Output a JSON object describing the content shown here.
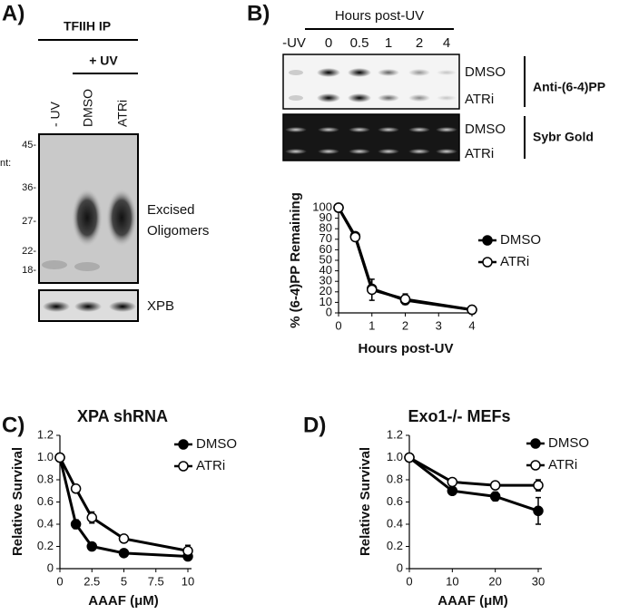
{
  "panel_a": {
    "label": "A)",
    "ip": "TFIIH IP",
    "uv": "+ UV",
    "lanes": [
      "- UV",
      "DMSO",
      "ATRi"
    ],
    "nt_label": "nt:",
    "markers": [
      "45-",
      "36-",
      "27-",
      "22-",
      "18-"
    ],
    "band_label": [
      "Excised",
      "Oligomers"
    ],
    "loading": "XPB"
  },
  "panel_b": {
    "label": "B)",
    "header": "Hours post-UV",
    "lanes": [
      "-UV",
      "0",
      "0.5",
      "1",
      "2",
      "4"
    ],
    "rows": [
      "DMSO",
      "ATRi"
    ],
    "blot1": "Anti-(6-4)PP",
    "blot2": "Sybr Gold"
  },
  "chart_data": [
    {
      "type": "line",
      "xlabel": "Hours post-UV",
      "ylabel": "% (6-4)PP Remaining",
      "x": [
        0,
        0.5,
        1,
        2,
        4
      ],
      "xlim": [
        0,
        4
      ],
      "xticks": [
        0,
        1,
        2,
        3,
        4
      ],
      "ylim": [
        0,
        100
      ],
      "yticks": [
        0,
        10,
        20,
        30,
        40,
        50,
        60,
        70,
        80,
        90,
        100
      ],
      "series": [
        {
          "name": "DMSO",
          "color": "#000000",
          "filled": true,
          "values": [
            100,
            73,
            23,
            12,
            3
          ],
          "errors": [
            null,
            null,
            null,
            null,
            null
          ]
        },
        {
          "name": "ATRi",
          "color": "#000000",
          "filled": false,
          "values": [
            100,
            72,
            22,
            13,
            3
          ],
          "errors": [
            null,
            2,
            10,
            5,
            1
          ]
        }
      ]
    },
    {
      "type": "line",
      "panel_label": "C)",
      "title": "XPA shRNA",
      "xlabel": "AAAF (μM)",
      "ylabel": "Relative Survival",
      "x": [
        0,
        1.25,
        2.5,
        5,
        10
      ],
      "xlim": [
        0,
        10
      ],
      "xticks": [
        0,
        2.5,
        5,
        7.5,
        10
      ],
      "ylim": [
        0,
        1.2
      ],
      "yticks": [
        0,
        0.2,
        0.4,
        0.6,
        0.8,
        {
          "value": 1,
          "label": "1.0"
        },
        1.2
      ],
      "series": [
        {
          "name": "DMSO",
          "color": "#000000",
          "filled": true,
          "values": [
            1,
            0.4,
            0.2,
            0.14,
            0.11
          ],
          "errors": [
            null,
            0.04,
            null,
            null,
            null
          ]
        },
        {
          "name": "ATRi",
          "color": "#000000",
          "filled": false,
          "values": [
            1,
            0.72,
            0.46,
            0.27,
            0.16
          ],
          "errors": [
            null,
            0.02,
            0.05,
            null,
            0.05
          ]
        }
      ]
    },
    {
      "type": "line",
      "panel_label": "D)",
      "title": "Exo1-/- MEFs",
      "xlabel": "AAAF (μM)",
      "ylabel": "Relative Survival",
      "x": [
        0,
        10,
        20,
        30
      ],
      "xlim": [
        0,
        30
      ],
      "xticks": [
        0,
        10,
        20,
        30
      ],
      "ylim": [
        0,
        1.2
      ],
      "yticks": [
        0,
        0.2,
        0.4,
        0.6,
        0.8,
        {
          "value": 1,
          "label": "1.0"
        },
        1.2
      ],
      "series": [
        {
          "name": "DMSO",
          "color": "#000000",
          "filled": true,
          "values": [
            1,
            0.7,
            0.65,
            0.52
          ],
          "errors": [
            null,
            null,
            0.04,
            0.12
          ]
        },
        {
          "name": "ATRi",
          "color": "#000000",
          "filled": false,
          "values": [
            1,
            0.78,
            0.75,
            0.75
          ],
          "errors": [
            null,
            null,
            null,
            0.05
          ]
        }
      ]
    }
  ]
}
